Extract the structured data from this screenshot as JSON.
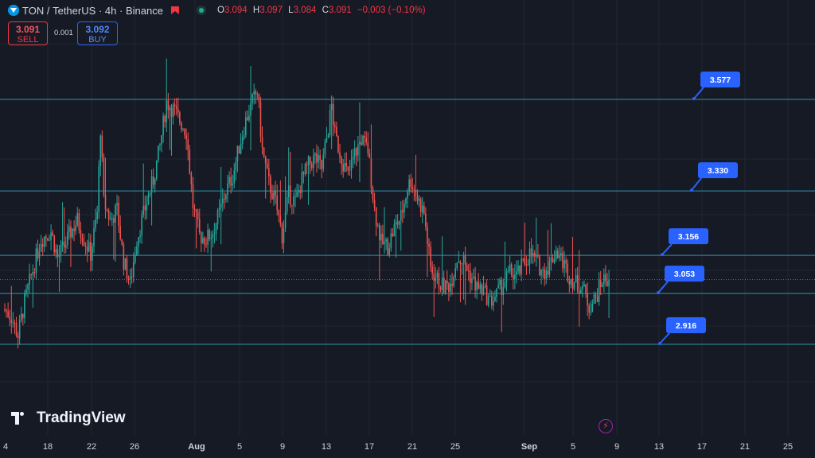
{
  "header": {
    "symbol": "TON",
    "separator1": "/",
    "quote": "TetherUS",
    "interval_sep": "·",
    "interval": "4h",
    "exchange_sep": "·",
    "exchange": "Binance",
    "open_label": "O",
    "open": "3.094",
    "high_label": "H",
    "high": "3.097",
    "low_label": "L",
    "low": "3.084",
    "close_label": "C",
    "close": "3.091",
    "change": "−0.003 (−0.10%)"
  },
  "trade": {
    "sell_price": "3.091",
    "sell_label": "SELL",
    "spread": "0.001",
    "buy_price": "3.092",
    "buy_label": "BUY"
  },
  "logo": {
    "text": "TradingView"
  },
  "colors": {
    "background": "#161a25",
    "up": "#26a69a",
    "down": "#ef5350",
    "level_line": "#2a97a8",
    "label_bg": "#2962ff",
    "grid": "#222633"
  },
  "chart_data": {
    "type": "candlestick",
    "symbol": "TON/USDT",
    "timeframe": "4h",
    "ylim": [
      2.75,
      3.75
    ],
    "x_ticks": [
      "4",
      "18",
      "22",
      "26",
      "Aug",
      "5",
      "9",
      "13",
      "17",
      "21",
      "25",
      "Sep",
      "5",
      "9",
      "13",
      "17",
      "21",
      "25"
    ],
    "horizontal_levels": [
      3.577,
      3.33,
      3.156,
      3.053,
      2.916
    ],
    "level_labels": [
      "3.577",
      "3.330",
      "3.156",
      "3.053",
      "2.916"
    ],
    "current_price": 3.091,
    "price_path": [
      [
        0,
        3.01
      ],
      [
        4,
        2.99
      ],
      [
        8,
        2.94
      ],
      [
        12,
        3.03
      ],
      [
        16,
        3.1
      ],
      [
        22,
        3.2
      ],
      [
        28,
        3.22
      ],
      [
        32,
        3.15
      ],
      [
        36,
        3.18
      ],
      [
        40,
        3.22
      ],
      [
        44,
        3.25
      ],
      [
        48,
        3.2
      ],
      [
        52,
        3.16
      ],
      [
        56,
        3.27
      ],
      [
        58,
        3.5
      ],
      [
        60,
        3.3
      ],
      [
        64,
        3.25
      ],
      [
        68,
        3.28
      ],
      [
        72,
        3.14
      ],
      [
        76,
        3.08
      ],
      [
        80,
        3.2
      ],
      [
        86,
        3.3
      ],
      [
        90,
        3.36
      ],
      [
        94,
        3.45
      ],
      [
        98,
        3.57
      ],
      [
        102,
        3.55
      ],
      [
        106,
        3.52
      ],
      [
        110,
        3.49
      ],
      [
        114,
        3.29
      ],
      [
        118,
        3.21
      ],
      [
        122,
        3.2
      ],
      [
        126,
        3.22
      ],
      [
        130,
        3.27
      ],
      [
        134,
        3.33
      ],
      [
        138,
        3.37
      ],
      [
        142,
        3.45
      ],
      [
        146,
        3.52
      ],
      [
        150,
        3.57
      ],
      [
        153,
        3.6
      ],
      [
        156,
        3.44
      ],
      [
        160,
        3.35
      ],
      [
        164,
        3.3
      ],
      [
        168,
        3.21
      ],
      [
        172,
        3.32
      ],
      [
        176,
        3.3
      ],
      [
        180,
        3.36
      ],
      [
        184,
        3.4
      ],
      [
        188,
        3.42
      ],
      [
        192,
        3.39
      ],
      [
        196,
        3.5
      ],
      [
        198,
        3.56
      ],
      [
        200,
        3.48
      ],
      [
        204,
        3.42
      ],
      [
        208,
        3.37
      ],
      [
        212,
        3.43
      ],
      [
        216,
        3.47
      ],
      [
        220,
        3.44
      ],
      [
        224,
        3.28
      ],
      [
        228,
        3.19
      ],
      [
        232,
        3.18
      ],
      [
        236,
        3.23
      ],
      [
        240,
        3.26
      ],
      [
        244,
        3.34
      ],
      [
        246,
        3.36
      ],
      [
        250,
        3.31
      ],
      [
        254,
        3.27
      ],
      [
        258,
        3.12
      ],
      [
        262,
        3.09
      ],
      [
        266,
        3.07
      ],
      [
        270,
        3.08
      ],
      [
        274,
        3.15
      ],
      [
        278,
        3.14
      ],
      [
        282,
        3.1
      ],
      [
        286,
        3.07
      ],
      [
        290,
        3.06
      ],
      [
        294,
        3.03
      ],
      [
        298,
        3.05
      ],
      [
        302,
        3.08
      ],
      [
        306,
        3.11
      ],
      [
        310,
        3.1
      ],
      [
        314,
        3.13
      ],
      [
        318,
        3.16
      ],
      [
        322,
        3.14
      ],
      [
        326,
        3.11
      ],
      [
        330,
        3.13
      ],
      [
        334,
        3.17
      ],
      [
        338,
        3.14
      ],
      [
        342,
        3.1
      ],
      [
        346,
        3.08
      ],
      [
        350,
        3.07
      ],
      [
        354,
        3.02
      ],
      [
        358,
        3.04
      ],
      [
        362,
        3.09
      ],
      [
        366,
        3.091
      ]
    ]
  }
}
